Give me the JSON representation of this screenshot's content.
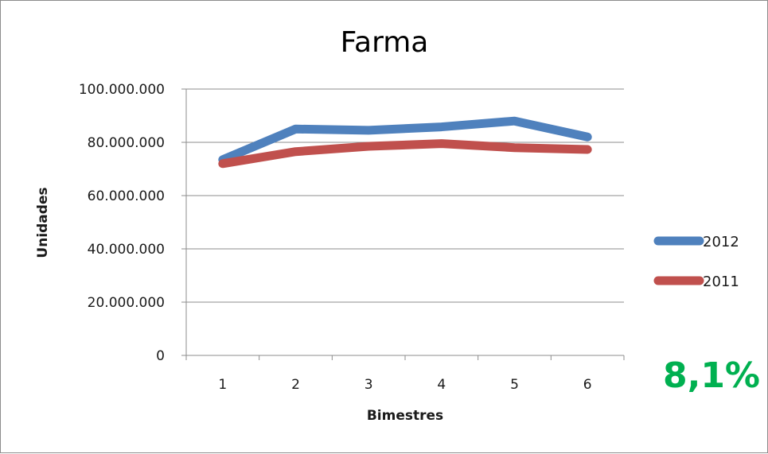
{
  "chart_data": {
    "type": "line",
    "title": "Farma",
    "xlabel": "Bimestres",
    "ylabel": "Unidades",
    "categories": [
      "1",
      "2",
      "3",
      "4",
      "5",
      "6"
    ],
    "ylim": [
      0,
      100000000
    ],
    "yticks": [
      0,
      20000000,
      40000000,
      60000000,
      80000000,
      100000000
    ],
    "ytick_labels": [
      "0",
      "20.000.000",
      "40.000.000",
      "60.000.000",
      "80.000.000",
      "100.000.000"
    ],
    "grid": "horizontal",
    "legend_position": "right",
    "series": [
      {
        "name": "2012",
        "color": "#4f81bd",
        "values": [
          73500000,
          85000000,
          84500000,
          85800000,
          88000000,
          82000000
        ]
      },
      {
        "name": "2011",
        "color": "#c0504d",
        "values": [
          72000000,
          76500000,
          78500000,
          79500000,
          78000000,
          77300000
        ]
      }
    ],
    "annotation": {
      "text": "8,1%",
      "color": "#00b050"
    }
  }
}
